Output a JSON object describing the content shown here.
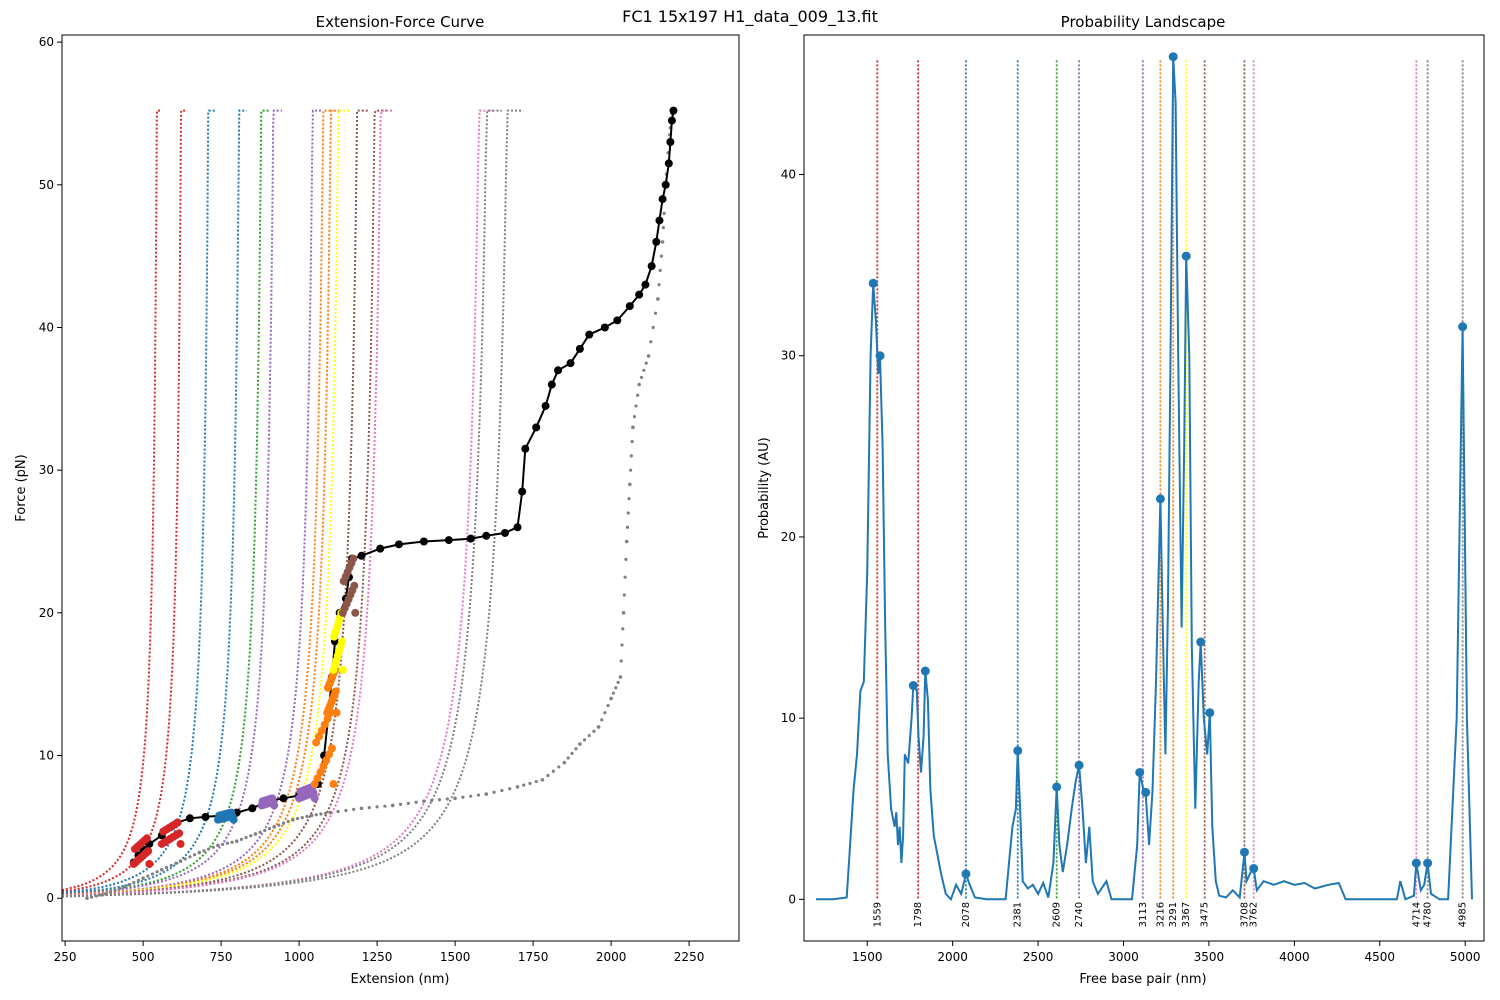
{
  "suptitle": "FC1 15x197 H1_data_009_13.fit",
  "chart_data": [
    {
      "type": "scatter",
      "title": "Extension-Force Curve",
      "xlabel": "Extension (nm)",
      "ylabel": "Force (pN)",
      "xlim": [
        240,
        2410
      ],
      "ylim": [
        -3,
        60.5
      ],
      "xticks": [
        250,
        500,
        750,
        1000,
        1250,
        1500,
        1750,
        2000,
        2250
      ],
      "yticks": [
        0,
        10,
        20,
        30,
        40,
        50,
        60
      ],
      "model_curves": [
        {
          "wall": 560,
          "color": "#d62728"
        },
        {
          "wall": 640,
          "color": "#d62728"
        },
        {
          "wall": 730,
          "color": "#1f77b4"
        },
        {
          "wall": 832,
          "color": "#1f77b4"
        },
        {
          "wall": 905,
          "color": "#2ca02c"
        },
        {
          "wall": 945,
          "color": "#9467bd"
        },
        {
          "wall": 1075,
          "color": "#9467bd"
        },
        {
          "wall": 1110,
          "color": "#ff7f0e"
        },
        {
          "wall": 1135,
          "color": "#ff7f0e"
        },
        {
          "wall": 1160,
          "color": "#ffff00"
        },
        {
          "wall": 1222,
          "color": "#8c564b"
        },
        {
          "wall": 1280,
          "color": "#8c564b"
        },
        {
          "wall": 1300,
          "color": "#e377c2"
        },
        {
          "wall": 1625,
          "color": "#e377c2"
        },
        {
          "wall": 1650,
          "color": "#7f7f7f"
        },
        {
          "wall": 1718,
          "color": "#7f7f7f"
        }
      ],
      "pull_trace": [
        [
          470,
          2.5
        ],
        [
          485,
          3.0
        ],
        [
          500,
          3.4
        ],
        [
          520,
          3.8
        ],
        [
          560,
          4.4
        ],
        [
          590,
          5.0
        ],
        [
          610,
          5.3
        ],
        [
          650,
          5.6
        ],
        [
          700,
          5.7
        ],
        [
          760,
          5.8
        ],
        [
          800,
          6.0
        ],
        [
          850,
          6.3
        ],
        [
          900,
          6.8
        ],
        [
          950,
          7.0
        ],
        [
          1000,
          7.2
        ],
        [
          1040,
          7.4
        ],
        [
          1060,
          8.0
        ],
        [
          1080,
          10.0
        ],
        [
          1095,
          13.0
        ],
        [
          1105,
          15.5
        ],
        [
          1115,
          18.0
        ],
        [
          1130,
          20.0
        ],
        [
          1150,
          21.0
        ],
        [
          1160,
          22.5
        ],
        [
          1170,
          23.8
        ],
        [
          1200,
          24.0
        ],
        [
          1260,
          24.5
        ],
        [
          1320,
          24.8
        ],
        [
          1400,
          25.0
        ],
        [
          1480,
          25.1
        ],
        [
          1550,
          25.2
        ],
        [
          1600,
          25.4
        ],
        [
          1660,
          25.6
        ],
        [
          1700,
          26.0
        ],
        [
          1715,
          28.5
        ],
        [
          1725,
          31.5
        ],
        [
          1760,
          33.0
        ],
        [
          1790,
          34.5
        ],
        [
          1810,
          36.0
        ],
        [
          1830,
          37.0
        ],
        [
          1870,
          37.5
        ],
        [
          1900,
          38.5
        ],
        [
          1930,
          39.5
        ],
        [
          1980,
          40.0
        ],
        [
          2020,
          40.5
        ],
        [
          2060,
          41.5
        ],
        [
          2090,
          42.3
        ],
        [
          2110,
          43.0
        ],
        [
          2130,
          44.3
        ],
        [
          2145,
          46.0
        ],
        [
          2155,
          47.5
        ],
        [
          2165,
          49.0
        ],
        [
          2175,
          50.0
        ],
        [
          2185,
          51.5
        ],
        [
          2190,
          53.0
        ],
        [
          2195,
          54.5
        ],
        [
          2200,
          55.2
        ]
      ],
      "relax_trace": [
        [
          320,
          0.0
        ],
        [
          380,
          0.3
        ],
        [
          440,
          0.8
        ],
        [
          500,
          1.4
        ],
        [
          560,
          2.0
        ],
        [
          620,
          2.6
        ],
        [
          680,
          3.2
        ],
        [
          740,
          3.7
        ],
        [
          800,
          4.0
        ],
        [
          860,
          4.5
        ],
        [
          920,
          5.0
        ],
        [
          980,
          5.5
        ],
        [
          1040,
          5.8
        ],
        [
          1100,
          6.0
        ],
        [
          1200,
          6.3
        ],
        [
          1300,
          6.5
        ],
        [
          1400,
          6.8
        ],
        [
          1500,
          7.0
        ],
        [
          1600,
          7.3
        ],
        [
          1700,
          7.8
        ],
        [
          1780,
          8.3
        ],
        [
          1850,
          9.5
        ],
        [
          1900,
          10.8
        ],
        [
          1960,
          12.0
        ],
        [
          2000,
          14.0
        ],
        [
          2030,
          15.5
        ],
        [
          2040,
          20.0
        ],
        [
          2050,
          25.0
        ],
        [
          2060,
          29.0
        ],
        [
          2070,
          33.0
        ],
        [
          2090,
          36.0
        ],
        [
          2120,
          38.0
        ],
        [
          2150,
          42.0
        ],
        [
          2165,
          46.0
        ],
        [
          2175,
          50.0
        ],
        [
          2185,
          53.0
        ],
        [
          2195,
          55.0
        ]
      ],
      "clusters": [
        {
          "x": [
            470,
            520
          ],
          "y": [
            2.4,
            4.2
          ],
          "color": "#d62728"
        },
        {
          "x": [
            560,
            620
          ],
          "y": [
            3.8,
            5.3
          ],
          "color": "#d62728"
        },
        {
          "x": [
            740,
            790
          ],
          "y": [
            5.5,
            6.0
          ],
          "color": "#1f77b4"
        },
        {
          "x": [
            880,
            920
          ],
          "y": [
            6.5,
            7.0
          ],
          "color": "#9467bd"
        },
        {
          "x": [
            1000,
            1050
          ],
          "y": [
            7.0,
            7.8
          ],
          "color": "#9467bd"
        },
        {
          "x": [
            1050,
            1110
          ],
          "y": [
            8.0,
            13.0
          ],
          "color": "#ff7f0e"
        },
        {
          "x": [
            1090,
            1120
          ],
          "y": [
            13.0,
            16.0
          ],
          "color": "#ff7f0e"
        },
        {
          "x": [
            1110,
            1140
          ],
          "y": [
            16.0,
            20.0
          ],
          "color": "#ffff00"
        },
        {
          "x": [
            1140,
            1180
          ],
          "y": [
            20.0,
            23.8
          ],
          "color": "#8c564b"
        }
      ]
    },
    {
      "type": "line",
      "title": "Probability Landscape",
      "xlabel": "Free base pair (nm)",
      "ylabel": "Probability (AU)",
      "xlim": [
        1130,
        5110
      ],
      "ylim": [
        -2.3,
        47.7
      ],
      "xticks": [
        1500,
        2000,
        2500,
        3000,
        3500,
        4000,
        4500,
        5000
      ],
      "yticks": [
        0,
        10,
        20,
        30,
        40
      ],
      "line_color": "#1f77b4",
      "curve": [
        [
          1200,
          0
        ],
        [
          1300,
          0
        ],
        [
          1380,
          0.1
        ],
        [
          1400,
          3
        ],
        [
          1420,
          6
        ],
        [
          1440,
          8
        ],
        [
          1460,
          11.5
        ],
        [
          1480,
          12
        ],
        [
          1500,
          18
        ],
        [
          1520,
          30
        ],
        [
          1535,
          34
        ],
        [
          1550,
          32
        ],
        [
          1565,
          29
        ],
        [
          1575,
          30
        ],
        [
          1590,
          25
        ],
        [
          1605,
          15
        ],
        [
          1620,
          8
        ],
        [
          1640,
          5
        ],
        [
          1660,
          4
        ],
        [
          1670,
          4.8
        ],
        [
          1680,
          3
        ],
        [
          1690,
          4
        ],
        [
          1700,
          2
        ],
        [
          1710,
          3.5
        ],
        [
          1720,
          8
        ],
        [
          1740,
          7.5
        ],
        [
          1760,
          10
        ],
        [
          1770,
          11.8
        ],
        [
          1790,
          11.5
        ],
        [
          1800,
          9
        ],
        [
          1815,
          7
        ],
        [
          1830,
          9
        ],
        [
          1840,
          12.6
        ],
        [
          1855,
          11
        ],
        [
          1870,
          6
        ],
        [
          1890,
          3.5
        ],
        [
          1910,
          2.5
        ],
        [
          1930,
          1.5
        ],
        [
          1960,
          0.3
        ],
        [
          1990,
          0
        ],
        [
          2020,
          0.8
        ],
        [
          2050,
          0.3
        ],
        [
          2078,
          1.4
        ],
        [
          2100,
          0.8
        ],
        [
          2130,
          0.1
        ],
        [
          2200,
          0
        ],
        [
          2310,
          0
        ],
        [
          2330,
          2
        ],
        [
          2350,
          4
        ],
        [
          2370,
          5
        ],
        [
          2381,
          8.2
        ],
        [
          2395,
          5
        ],
        [
          2410,
          1
        ],
        [
          2440,
          0.6
        ],
        [
          2470,
          0.8
        ],
        [
          2500,
          0.3
        ],
        [
          2530,
          0.9
        ],
        [
          2560,
          0.1
        ],
        [
          2590,
          2
        ],
        [
          2609,
          6.2
        ],
        [
          2625,
          3
        ],
        [
          2645,
          1.5
        ],
        [
          2670,
          3
        ],
        [
          2700,
          5.2
        ],
        [
          2720,
          6.5
        ],
        [
          2740,
          7.4
        ],
        [
          2760,
          5
        ],
        [
          2780,
          2
        ],
        [
          2800,
          4
        ],
        [
          2820,
          1
        ],
        [
          2850,
          0.3
        ],
        [
          2900,
          1
        ],
        [
          2930,
          0
        ],
        [
          3050,
          0
        ],
        [
          3080,
          3
        ],
        [
          3095,
          7
        ],
        [
          3113,
          6.2
        ],
        [
          3130,
          5.8
        ],
        [
          3150,
          3
        ],
        [
          3170,
          6
        ],
        [
          3190,
          12
        ],
        [
          3216,
          22.1
        ],
        [
          3230,
          15
        ],
        [
          3245,
          8
        ],
        [
          3260,
          16
        ],
        [
          3275,
          30
        ],
        [
          3291,
          46.5
        ],
        [
          3305,
          44
        ],
        [
          3320,
          30
        ],
        [
          3340,
          15
        ],
        [
          3355,
          25
        ],
        [
          3367,
          35.5
        ],
        [
          3385,
          30
        ],
        [
          3400,
          14
        ],
        [
          3420,
          5
        ],
        [
          3440,
          12
        ],
        [
          3452,
          14.2
        ],
        [
          3470,
          10
        ],
        [
          3490,
          8
        ],
        [
          3505,
          10.3
        ],
        [
          3520,
          4
        ],
        [
          3540,
          1
        ],
        [
          3560,
          0.2
        ],
        [
          3600,
          0.1
        ],
        [
          3640,
          0.5
        ],
        [
          3680,
          0.1
        ],
        [
          3708,
          2.6
        ],
        [
          3720,
          1
        ],
        [
          3745,
          1.5
        ],
        [
          3762,
          1.7
        ],
        [
          3780,
          0.5
        ],
        [
          3820,
          1
        ],
        [
          3880,
          0.8
        ],
        [
          3940,
          1
        ],
        [
          4000,
          0.8
        ],
        [
          4060,
          0.9
        ],
        [
          4120,
          0.6
        ],
        [
          4200,
          0.8
        ],
        [
          4260,
          0.9
        ],
        [
          4300,
          0
        ],
        [
          4600,
          0
        ],
        [
          4620,
          1
        ],
        [
          4650,
          0
        ],
        [
          4700,
          0.2
        ],
        [
          4714,
          2.0
        ],
        [
          4740,
          0.5
        ],
        [
          4760,
          0.8
        ],
        [
          4780,
          2.0
        ],
        [
          4800,
          0.3
        ],
        [
          4850,
          0
        ],
        [
          4900,
          0
        ],
        [
          4950,
          10
        ],
        [
          4985,
          31.6
        ],
        [
          5010,
          10
        ],
        [
          5040,
          0
        ]
      ],
      "peaks": [
        [
          1535,
          34
        ],
        [
          1575,
          30
        ],
        [
          1770,
          11.8
        ],
        [
          1840,
          12.6
        ],
        [
          2078,
          1.4
        ],
        [
          2381,
          8.2
        ],
        [
          2609,
          6.2
        ],
        [
          2740,
          7.4
        ],
        [
          3095,
          7.0
        ],
        [
          3130,
          5.9
        ],
        [
          3216,
          22.1
        ],
        [
          3291,
          46.5
        ],
        [
          3367,
          35.5
        ],
        [
          3452,
          14.2
        ],
        [
          3505,
          10.3
        ],
        [
          3708,
          2.6
        ],
        [
          3762,
          1.7
        ],
        [
          4714,
          2.0
        ],
        [
          4780,
          2.0
        ],
        [
          4985,
          31.6
        ]
      ],
      "vlines": [
        {
          "x": 1559,
          "label": "1559",
          "color": "#d62728"
        },
        {
          "x": 1798,
          "label": "1798",
          "color": "#d62728"
        },
        {
          "x": 2078,
          "label": "2078",
          "color": "#1f77b4"
        },
        {
          "x": 2381,
          "label": "2381",
          "color": "#1f77b4"
        },
        {
          "x": 2609,
          "label": "2609",
          "color": "#2ca02c"
        },
        {
          "x": 2740,
          "label": "2740",
          "color": "#9467bd"
        },
        {
          "x": 3113,
          "label": "3113",
          "color": "#9467bd"
        },
        {
          "x": 3216,
          "label": "3216",
          "color": "#ff7f0e"
        },
        {
          "x": 3291,
          "label": "3291",
          "color": "#ff7f0e"
        },
        {
          "x": 3367,
          "label": "3367",
          "color": "#ffff00"
        },
        {
          "x": 3475,
          "label": "3475",
          "color": "#8c564b"
        },
        {
          "x": 3708,
          "label": "3708",
          "color": "#8c564b"
        },
        {
          "x": 3762,
          "label": "3762",
          "color": "#e377c2"
        },
        {
          "x": 4714,
          "label": "4714",
          "color": "#e377c2"
        },
        {
          "x": 4780,
          "label": "4780",
          "color": "#7f7f7f"
        },
        {
          "x": 4985,
          "label": "4985",
          "color": "#7f7f7f"
        }
      ],
      "vline_top": 46.3
    }
  ]
}
